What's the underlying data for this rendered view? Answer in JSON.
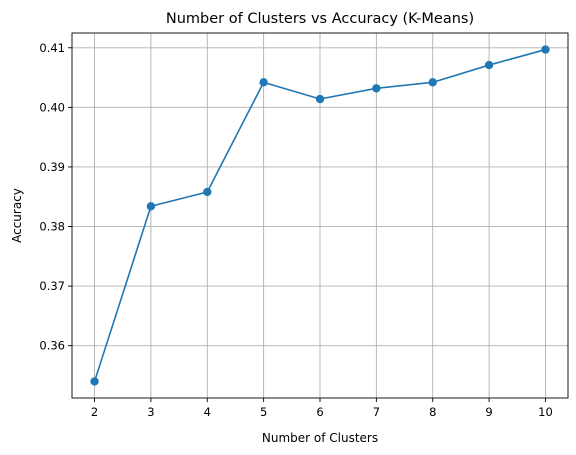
{
  "chart_data": {
    "type": "line",
    "title": "Number of Clusters vs Accuracy (K-Means)",
    "xlabel": "Number of Clusters",
    "ylabel": "Accuracy",
    "x": [
      2,
      3,
      4,
      5,
      6,
      7,
      8,
      9,
      10
    ],
    "series": [
      {
        "values": [
          0.354,
          0.3834,
          0.3858,
          0.4042,
          0.4014,
          0.4032,
          0.4042,
          0.4071,
          0.4097
        ],
        "color": "#1f77b4",
        "marker": "circle"
      }
    ],
    "xticks": [
      "2",
      "3",
      "4",
      "5",
      "6",
      "7",
      "8",
      "9",
      "10"
    ],
    "yticks": [
      "0.36",
      "0.37",
      "0.38",
      "0.39",
      "0.40",
      "0.41"
    ],
    "xlim": [
      1.6,
      10.4
    ],
    "ylim": [
      0.35122,
      0.41248
    ],
    "grid": true
  }
}
